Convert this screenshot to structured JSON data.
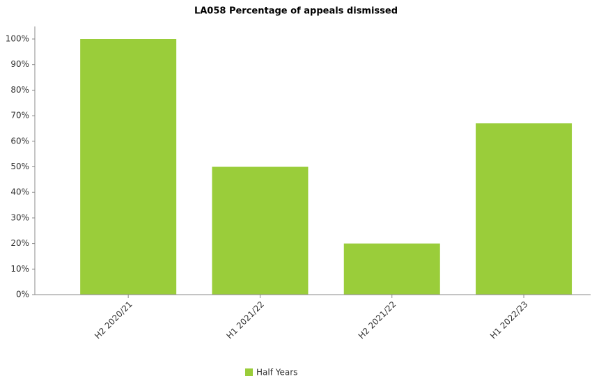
{
  "chart_data": {
    "type": "bar",
    "title": "LA058 Percentage of appeals dismissed",
    "categories": [
      "H2 2020/21",
      "H1 2021/22",
      "H2 2021/22",
      "H1 2022/23"
    ],
    "series": [
      {
        "name": "Half Years",
        "color": "#9acd3a",
        "values": [
          100,
          50,
          20,
          67
        ]
      }
    ],
    "ylim": [
      0,
      100
    ],
    "yticks": [
      {
        "value": 0,
        "label": "0%"
      },
      {
        "value": 10,
        "label": "10%"
      },
      {
        "value": 20,
        "label": "20%"
      },
      {
        "value": 30,
        "label": "30%"
      },
      {
        "value": 40,
        "label": "40%"
      },
      {
        "value": 50,
        "label": "50%"
      },
      {
        "value": 60,
        "label": "60%"
      },
      {
        "value": 70,
        "label": "70%"
      },
      {
        "value": 80,
        "label": "80%"
      },
      {
        "value": 90,
        "label": "90%"
      },
      {
        "value": 100,
        "label": "100%"
      }
    ],
    "grid": false
  }
}
